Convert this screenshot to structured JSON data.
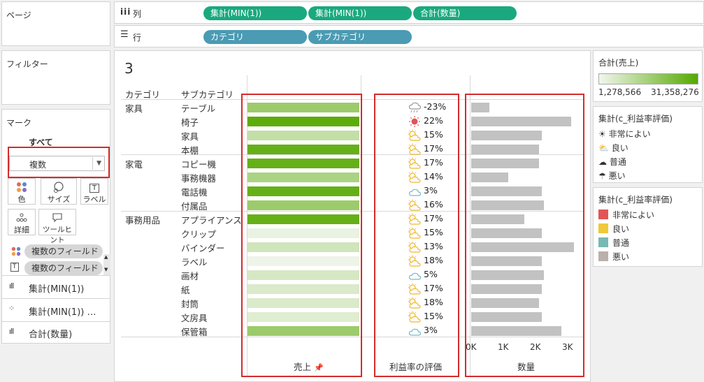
{
  "pages_label": "ページ",
  "filters_label": "フィルター",
  "marks": {
    "title": "マーク",
    "all_label": "すべて",
    "type_value": "複数",
    "buttons": [
      "色",
      "サイズ",
      "ラベル",
      "詳細",
      "ツールヒント"
    ],
    "fields": [
      "複数のフィールド",
      "複数のフィールド"
    ],
    "sections": [
      "集計(MIN(1))",
      "集計(MIN(1)) …",
      "合計(数量)"
    ]
  },
  "columns": {
    "label": "列",
    "pills": [
      "集計(MIN(1))",
      "集計(MIN(1))",
      "合計(数量)"
    ]
  },
  "rows": {
    "label": "行",
    "pills": [
      "カテゴリ",
      "サブカテゴリ"
    ]
  },
  "view": {
    "title": "3",
    "header_category": "カテゴリ",
    "header_subcategory": "サブカテゴリ",
    "footer_sales": "売上",
    "footer_profit": "利益率の評価",
    "footer_qty": "数量",
    "qty_ticks": [
      "0K",
      "1K",
      "2K",
      "3K"
    ]
  },
  "chart_data": {
    "type": "table",
    "categories": [
      {
        "name": "家具",
        "rows": [
          {
            "sub": "テーブル",
            "sales_level": 0.55,
            "profit": "-23%",
            "rating": "悪い",
            "qty": 0.57
          },
          {
            "sub": "椅子",
            "sales_level": 0.95,
            "profit": "22%",
            "rating": "非常によい",
            "qty": 3.1
          },
          {
            "sub": "家具",
            "sales_level": 0.3,
            "profit": "15%",
            "rating": "良い",
            "qty": 2.2
          },
          {
            "sub": "本棚",
            "sales_level": 0.9,
            "profit": "17%",
            "rating": "良い",
            "qty": 2.1
          }
        ]
      },
      {
        "name": "家電",
        "rows": [
          {
            "sub": "コピー機",
            "sales_level": 0.9,
            "profit": "17%",
            "rating": "良い",
            "qty": 2.1
          },
          {
            "sub": "事務機器",
            "sales_level": 0.45,
            "profit": "14%",
            "rating": "良い",
            "qty": 1.15
          },
          {
            "sub": "電話機",
            "sales_level": 0.9,
            "profit": "3%",
            "rating": "普通",
            "qty": 2.2
          },
          {
            "sub": "付属品",
            "sales_level": 0.55,
            "profit": "16%",
            "rating": "良い",
            "qty": 2.25
          }
        ]
      },
      {
        "name": "事務用品",
        "rows": [
          {
            "sub": "アプライアンス",
            "sales_level": 0.9,
            "profit": "17%",
            "rating": "良い",
            "qty": 1.65
          },
          {
            "sub": "クリップ",
            "sales_level": 0.05,
            "profit": "15%",
            "rating": "良い",
            "qty": 2.2
          },
          {
            "sub": "バインダー",
            "sales_level": 0.22,
            "profit": "13%",
            "rating": "良い",
            "qty": 3.2
          },
          {
            "sub": "ラベル",
            "sales_level": 0.02,
            "profit": "18%",
            "rating": "良い",
            "qty": 2.2
          },
          {
            "sub": "画材",
            "sales_level": 0.18,
            "profit": "5%",
            "rating": "普通",
            "qty": 2.25
          },
          {
            "sub": "紙",
            "sales_level": 0.15,
            "profit": "17%",
            "rating": "良い",
            "qty": 2.2
          },
          {
            "sub": "封筒",
            "sales_level": 0.15,
            "profit": "18%",
            "rating": "良い",
            "qty": 2.1
          },
          {
            "sub": "文房具",
            "sales_level": 0.12,
            "profit": "15%",
            "rating": "良い",
            "qty": 2.2
          },
          {
            "sub": "保管箱",
            "sales_level": 0.55,
            "profit": "3%",
            "rating": "普通",
            "qty": 2.8
          }
        ]
      }
    ],
    "qty_axis": {
      "min": 0,
      "max": 3000,
      "ticks": [
        "0K",
        "1K",
        "2K",
        "3K"
      ]
    }
  },
  "legend_sales": {
    "title": "合計(売上)",
    "min_label": "1,278,566",
    "max_label": "31,358,276",
    "color_low": "#f2f6ee",
    "color_high": "#55a800"
  },
  "legend_shape": {
    "title": "集計(c_利益率評価)",
    "items": [
      "非常によい",
      "良い",
      "普通",
      "悪い"
    ]
  },
  "legend_color": {
    "title": "集計(c_利益率評価)",
    "items": [
      {
        "label": "非常によい",
        "color": "#e05656"
      },
      {
        "label": "良い",
        "color": "#f0c93a"
      },
      {
        "label": "普通",
        "color": "#78b9b5"
      },
      {
        "label": "悪い",
        "color": "#bab0ac"
      }
    ]
  }
}
